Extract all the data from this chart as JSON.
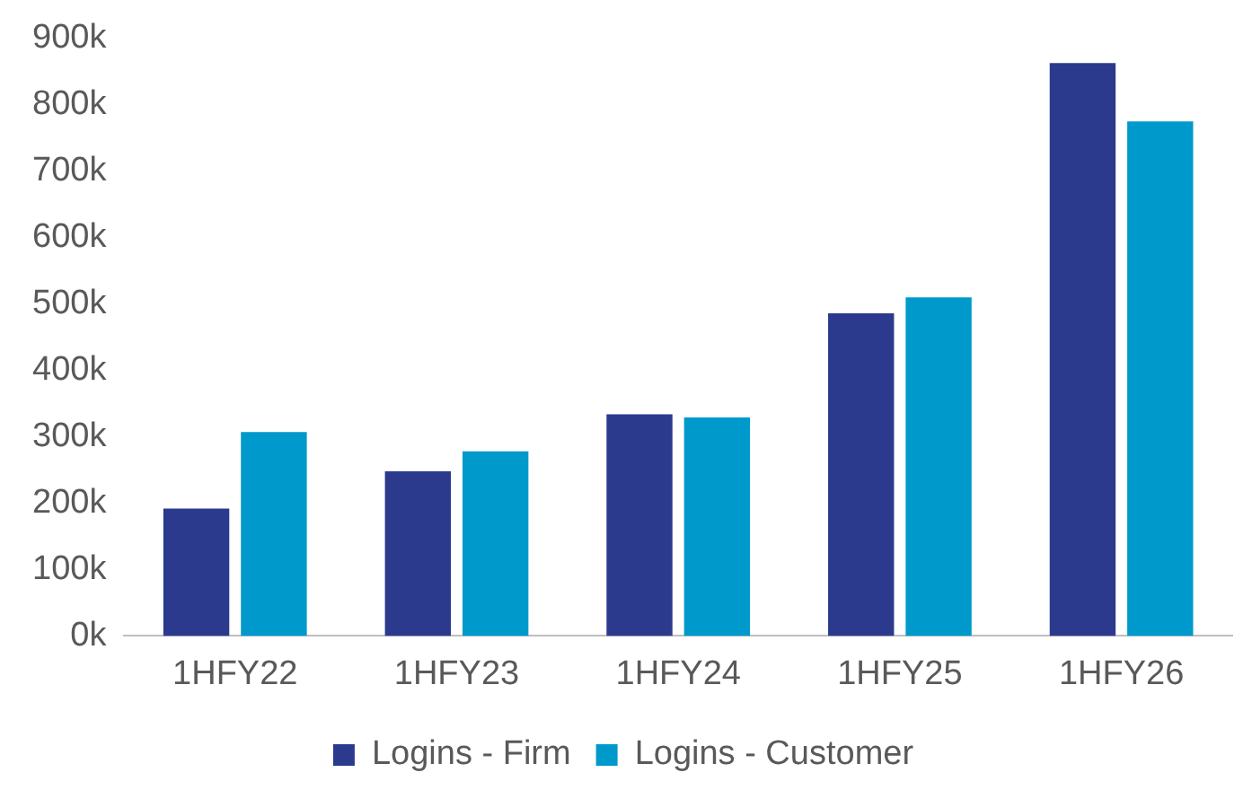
{
  "chart_data": {
    "type": "bar",
    "categories": [
      "1HFY22",
      "1HFY23",
      "1HFY24",
      "1HFY25",
      "1HFY26"
    ],
    "series": [
      {
        "name": "Logins - Firm",
        "color": "#2b3a8c",
        "values": [
          192000,
          248000,
          334000,
          486000,
          863000
        ]
      },
      {
        "name": "Logins - Customer",
        "color": "#0099cc",
        "values": [
          307000,
          278000,
          329000,
          510000,
          775000
        ]
      }
    ],
    "ylim": [
      0,
      900000
    ],
    "yticks": [
      {
        "value": 0,
        "label": "0k"
      },
      {
        "value": 100000,
        "label": "100k"
      },
      {
        "value": 200000,
        "label": "200k"
      },
      {
        "value": 300000,
        "label": "300k"
      },
      {
        "value": 400000,
        "label": "400k"
      },
      {
        "value": 500000,
        "label": "500k"
      },
      {
        "value": 600000,
        "label": "600k"
      },
      {
        "value": 700000,
        "label": "700k"
      },
      {
        "value": 800000,
        "label": "800k"
      },
      {
        "value": 900000,
        "label": "900k"
      }
    ],
    "grid": false,
    "legend": "bottom"
  }
}
